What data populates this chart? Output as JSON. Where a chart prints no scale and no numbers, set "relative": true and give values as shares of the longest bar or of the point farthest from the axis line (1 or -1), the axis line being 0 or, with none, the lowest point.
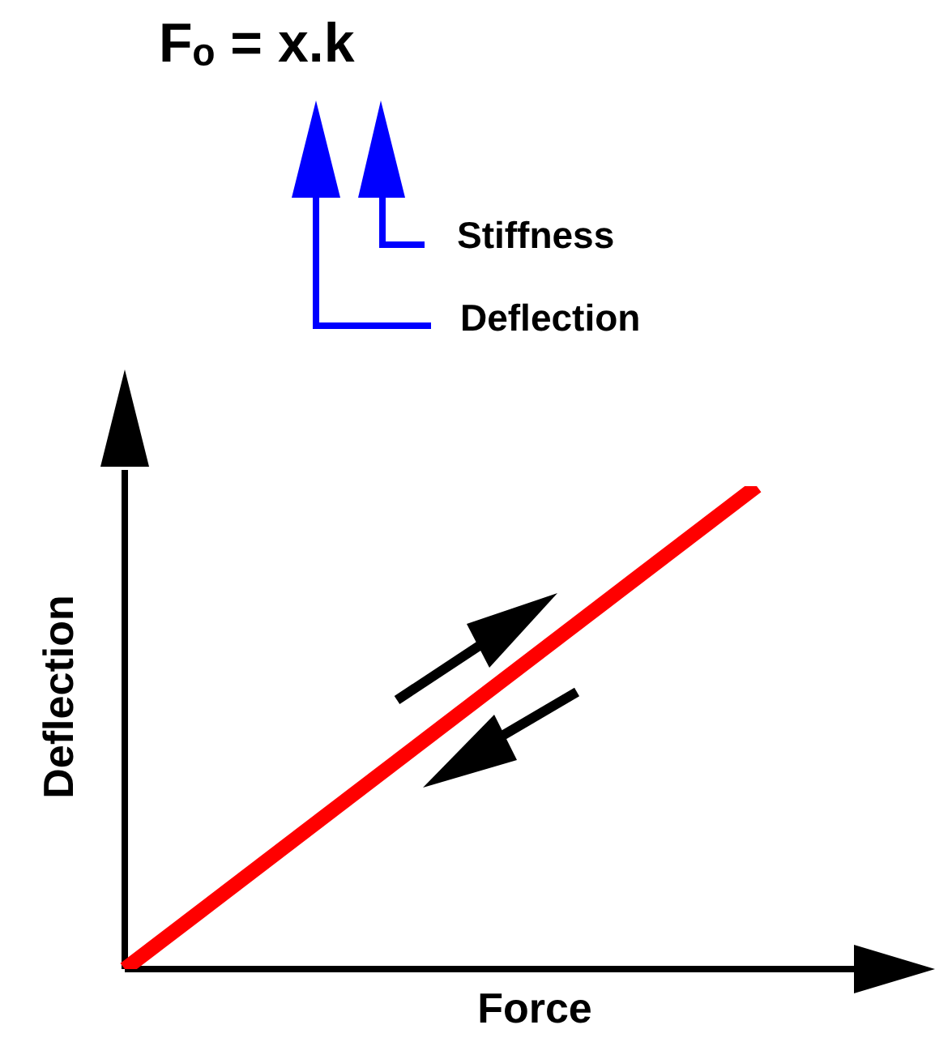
{
  "chart_data": {
    "type": "line",
    "title": "Fₒ = x.k",
    "xlabel": "Force",
    "ylabel": "Deflection",
    "annotations": [
      "Stiffness",
      "Deflection"
    ],
    "categories": [
      null,
      null
    ],
    "series": [
      {
        "color": "#ff0000",
        "values": [
          0,
          1
        ]
      }
    ],
    "relative": true,
    "marker": "none",
    "legend": false
  }
}
